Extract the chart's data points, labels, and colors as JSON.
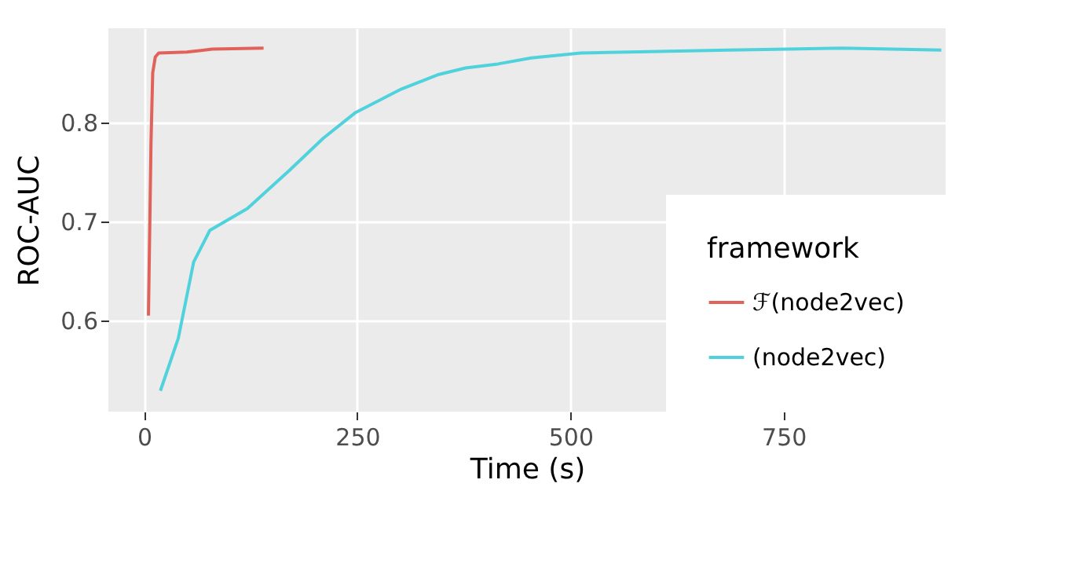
{
  "chart_data": {
    "type": "line",
    "xlabel": "Time (s)",
    "ylabel": "ROC-AUC",
    "legend_title": "framework",
    "legend": "bottom right",
    "grid": true,
    "xlim": [
      -42,
      940
    ],
    "xticks": [
      0,
      250,
      500,
      750
    ],
    "ylim": [
      0.508,
      0.895
    ],
    "yticks": [
      0.6,
      0.7,
      0.8
    ],
    "series": [
      {
        "name": "ℱ(node2vec)",
        "color": "#e0625a",
        "x": [
          5,
          8,
          10,
          13,
          17,
          50,
          80,
          140
        ],
        "values": [
          0.605,
          0.78,
          0.85,
          0.866,
          0.87,
          0.871,
          0.874,
          0.875
        ]
      },
      {
        "name": "(node2vec)",
        "color": "#4fd2db",
        "x": [
          19,
          40,
          58,
          77,
          121,
          171,
          210,
          248,
          300,
          344,
          377,
          415,
          454,
          512,
          685,
          819,
          935
        ],
        "values": [
          0.529,
          0.582,
          0.659,
          0.691,
          0.713,
          0.752,
          0.784,
          0.81,
          0.833,
          0.848,
          0.855,
          0.859,
          0.865,
          0.87,
          0.873,
          0.875,
          0.873
        ]
      }
    ]
  }
}
